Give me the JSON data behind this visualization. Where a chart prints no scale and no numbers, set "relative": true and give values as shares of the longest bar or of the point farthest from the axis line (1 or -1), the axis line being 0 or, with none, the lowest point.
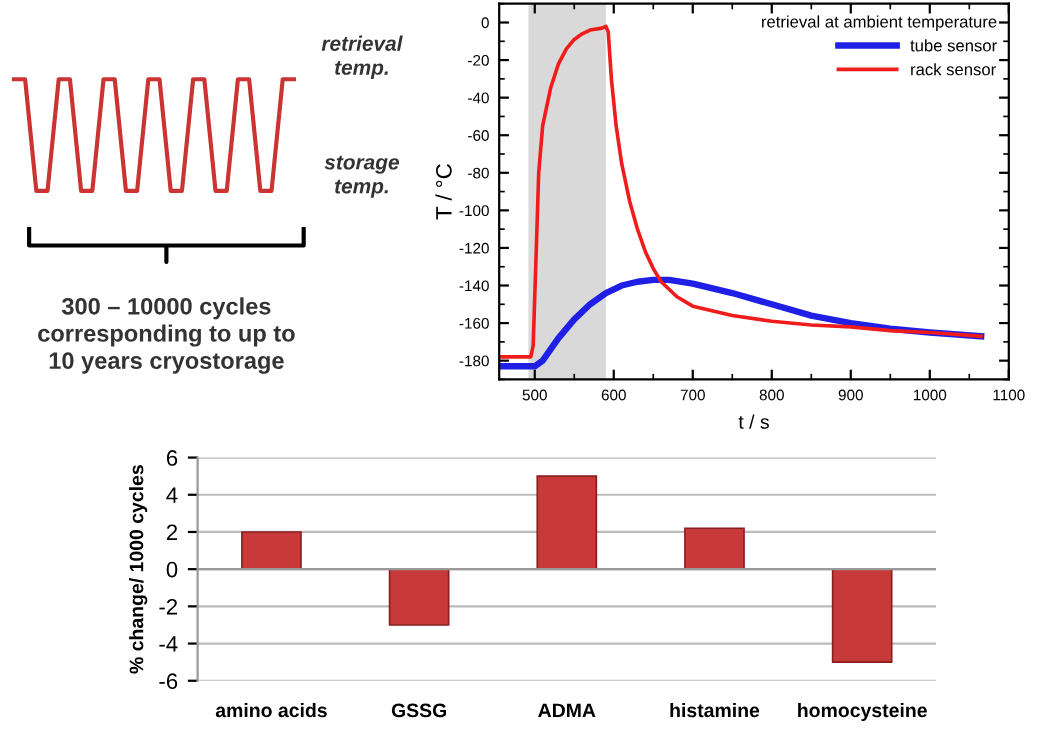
{
  "chart_data": [
    {
      "type": "line",
      "relative": true,
      "color": "#cc3333",
      "categories": [
        null,
        null,
        null,
        null,
        null,
        null,
        null,
        null,
        null,
        null,
        null,
        null,
        null,
        null,
        null,
        null,
        null,
        null,
        null,
        null,
        null,
        null,
        null,
        null,
        null,
        null
      ],
      "values": [
        1,
        1,
        0,
        0,
        1,
        1,
        0,
        0,
        1,
        1,
        0,
        0,
        1,
        1,
        0,
        0,
        1,
        1,
        0,
        0,
        1,
        1,
        0,
        0,
        1,
        1
      ],
      "annotations": [
        "retrieval temp.",
        "storage temp.",
        "300 – 10000 cycles\ncorresponding to up to\n10 years cryostorage"
      ]
    },
    {
      "type": "line",
      "xlabel": "t / s",
      "ylabel": "T / °C",
      "legend_title": "retrieval at ambient temperature",
      "legend": "top right",
      "grid": false,
      "line_style": "solid",
      "marker": "none",
      "xlim": [
        455,
        1100
      ],
      "xticks": [
        500,
        600,
        700,
        800,
        900,
        1000,
        1100
      ],
      "ylim": [
        -190,
        10
      ],
      "yticks": [
        -180,
        -160,
        -140,
        -120,
        -100,
        -80,
        -60,
        -40,
        -20,
        0
      ],
      "bands": [
        {
          "axis": "x",
          "from": 492,
          "to": 590,
          "color": "#d9d9d9"
        }
      ],
      "series": [
        {
          "name": "tube sensor",
          "color": "#1f1fe6",
          "x": [
            455,
            500,
            510,
            530,
            550,
            570,
            590,
            610,
            630,
            650,
            670,
            700,
            750,
            800,
            850,
            900,
            950,
            1000,
            1065
          ],
          "values": [
            -183,
            -183,
            -180,
            -168,
            -158,
            -150,
            -144,
            -140,
            -138,
            -137,
            -137,
            -139,
            -144,
            -150,
            -156,
            -160,
            -163,
            -165,
            -167
          ]
        },
        {
          "name": "rack sensor",
          "color": "#f01c1c",
          "x": [
            455,
            495,
            498,
            502,
            505,
            510,
            520,
            530,
            540,
            550,
            560,
            570,
            585,
            590,
            593,
            597,
            603,
            610,
            620,
            630,
            640,
            650,
            660,
            680,
            700,
            750,
            800,
            850,
            900,
            950,
            1000,
            1065
          ],
          "values": [
            -178,
            -178,
            -172,
            -120,
            -80,
            -55,
            -35,
            -22,
            -14,
            -9,
            -6,
            -4,
            -3,
            -2,
            -5,
            -30,
            -55,
            -75,
            -95,
            -110,
            -122,
            -131,
            -138,
            -146,
            -151,
            -156,
            -159,
            -161,
            -162,
            -164,
            -165,
            -167
          ]
        }
      ]
    },
    {
      "type": "bar",
      "ylabel": "% change/ 1000 cycles",
      "categories": [
        "amino acids",
        "GSSG",
        "ADMA",
        "histamine",
        "homocysteine"
      ],
      "values": [
        2,
        -3,
        5,
        2.2,
        -5
      ],
      "color": "#c83a3a",
      "ylim": [
        -6,
        6
      ],
      "yticks": [
        -6,
        -4,
        -2,
        0,
        2,
        4,
        6
      ],
      "grid": "y"
    }
  ]
}
